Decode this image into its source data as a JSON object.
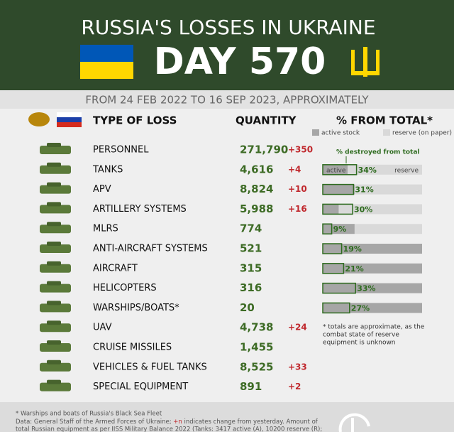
{
  "header": {
    "title": "RUSSIA'S LOSSES IN UKRAINE",
    "day": "DAY 570",
    "subtitle": "FROM 24 FEB 2022 TO 16 SEP 2023, APPROXIMATELY"
  },
  "table": {
    "columns": [
      "TYPE OF LOSS",
      "QUANTITY",
      "% FROM TOTAL*"
    ],
    "legend": {
      "active": "active stock",
      "reserve": "reserve (on paper)",
      "destroyed": "% destroyed from total",
      "bar_active": "active",
      "bar_reserve": "reserve"
    },
    "rows": [
      {
        "name": "PERSONNEL",
        "quantity": "271,790",
        "change": "+350"
      },
      {
        "name": "TANKS",
        "quantity": "4,616",
        "change": "+4",
        "destroyed_pct": 34,
        "destroyed_label": "34%",
        "active_pct": 25
      },
      {
        "name": "APV",
        "quantity": "8,824",
        "change": "+10",
        "destroyed_pct": 31,
        "destroyed_label": "31%",
        "active_pct": 32
      },
      {
        "name": "ARTILLERY SYSTEMS",
        "quantity": "5,988",
        "change": "+16",
        "destroyed_pct": 30,
        "destroyed_label": "30%",
        "active_pct": 16
      },
      {
        "name": "MLRS",
        "quantity": "774",
        "destroyed_pct": 9,
        "destroyed_label": "9%",
        "active_pct": 32
      },
      {
        "name": "ANTI-AIRCRAFT SYSTEMS",
        "quantity": "521",
        "destroyed_pct": 19,
        "destroyed_label": "19%",
        "active_pct": 100
      },
      {
        "name": "AIRCRAFT",
        "quantity": "315",
        "destroyed_pct": 21,
        "destroyed_label": "21%",
        "active_pct": 100
      },
      {
        "name": "HELICOPTERS",
        "quantity": "316",
        "destroyed_pct": 33,
        "destroyed_label": "33%",
        "active_pct": 100
      },
      {
        "name": "WARSHIPS/BOATS*",
        "quantity": "20",
        "destroyed_pct": 27,
        "destroyed_label": "27%",
        "active_pct": 100
      },
      {
        "name": "UAV",
        "quantity": "4,738",
        "change": "+24"
      },
      {
        "name": "CRUISE MISSILES",
        "quantity": "1,455"
      },
      {
        "name": "VEHICLES & FUEL TANKS",
        "quantity": "8,525",
        "change": "+33"
      },
      {
        "name": "SPECIAL EQUIPMENT",
        "quantity": "891",
        "change": "+2"
      }
    ],
    "note": [
      "* totals are approximate, as the",
      "combat state of reserve",
      "equipment is unknown"
    ]
  },
  "footer": {
    "line1": "* Warships and boats of Russia's Black Sea Fleet",
    "line2a": "Data: General Staff of the Armed Forces of Ukraine;",
    "line2b": "+n",
    "line2c": "indicates change from yesterday. Amount of",
    "line3": "total Russian equipment as per IISS Military Balance 2022 (Tanks: 3417 active (A), 10200 reserve (R);"
  }
}
